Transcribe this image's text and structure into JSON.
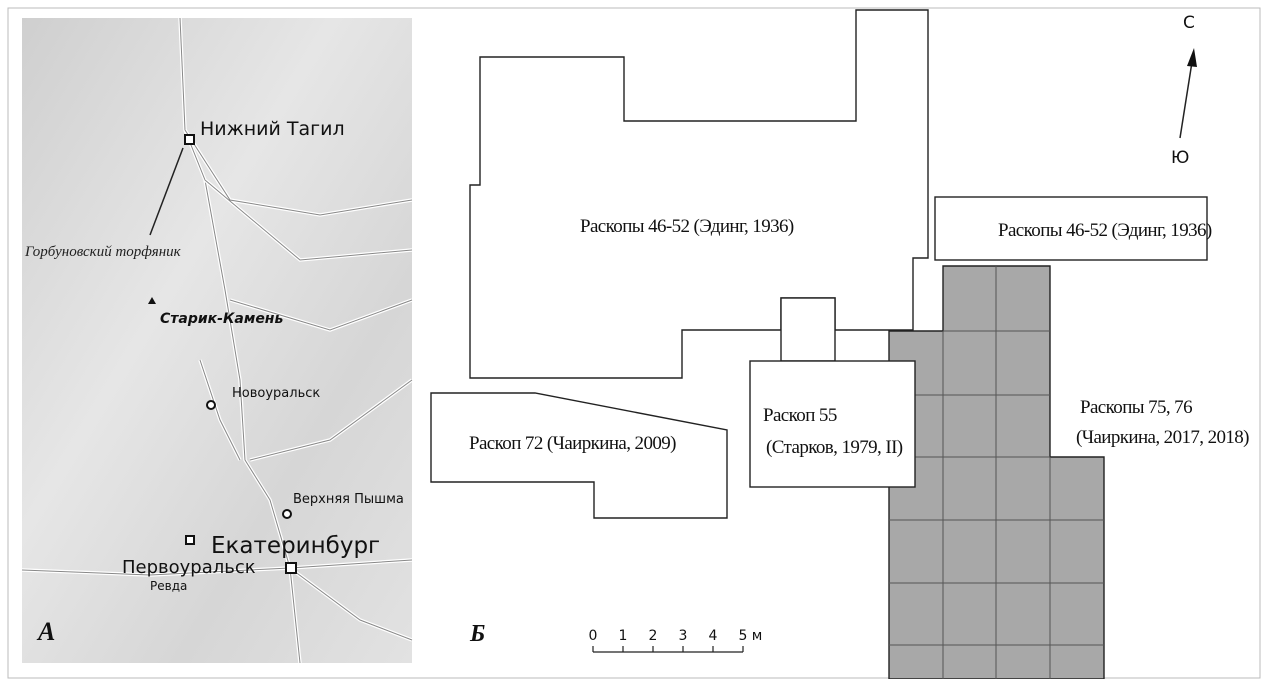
{
  "map_panel": {
    "label": "А",
    "places": [
      "Нижний Тагил",
      "Горбуновский торфяник",
      "Старик-Камень",
      "Новоуральск",
      "Верхняя Пышма",
      "Екатеринбург",
      "Первоуральск",
      "Ревда"
    ]
  },
  "plan_panel": {
    "label": "Б",
    "excavations": [
      {
        "lines": [
          "Раскопы 46-52 (Эдинг, 1936)"
        ]
      },
      {
        "lines": [
          "Раскопы 46-52 (Эдинг, 1936)"
        ]
      },
      {
        "lines": [
          "Раскоп 72 (Чаиркина, 2009)"
        ]
      },
      {
        "lines": [
          "Раскоп 55",
          "(Старков, 1979, II)"
        ]
      },
      {
        "lines": [
          "Раскопы 75, 76",
          "(Чаиркина, 2017, 2018)"
        ]
      }
    ],
    "scale": {
      "ticks": [
        "0",
        "1",
        "2",
        "3",
        "4",
        "5"
      ],
      "unit": "м"
    },
    "north": "С",
    "south": "Ю"
  }
}
